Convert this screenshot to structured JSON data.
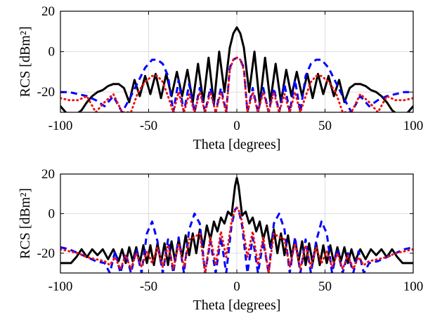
{
  "chart_data": [
    {
      "type": "line",
      "xlabel": "Theta [degrees]",
      "ylabel": "RCS [dBm²]",
      "xlim": [
        -100,
        100
      ],
      "ylim": [
        -30,
        20
      ],
      "xticks": [
        "-100",
        "-50",
        "0",
        "50",
        "100"
      ],
      "yticks": [
        "20",
        "0",
        "-20"
      ],
      "grid": true,
      "series": [
        {
          "color": "#000000",
          "style": "solid",
          "x": [
            -100,
            -97,
            -94,
            -91,
            -88,
            -85,
            -82,
            -79,
            -76,
            -73,
            -70,
            -67,
            -64,
            -61,
            -58,
            -55,
            -52,
            -49,
            -46,
            -43,
            -40,
            -37,
            -34,
            -31,
            -28,
            -25,
            -22,
            -19,
            -16,
            -13,
            -10,
            -7,
            -4,
            -2,
            0,
            2,
            4,
            7,
            10,
            13,
            16,
            19,
            22,
            25,
            28,
            31,
            34,
            37,
            40,
            43,
            46,
            49,
            52,
            55,
            58,
            61,
            64,
            67,
            70,
            73,
            76,
            79,
            82,
            85,
            88,
            91,
            94,
            97,
            100
          ],
          "y": [
            -27,
            -30,
            -32,
            -31,
            -29,
            -25,
            -22,
            -20,
            -19,
            -17,
            -16,
            -16,
            -18,
            -25,
            -14,
            -22,
            -12,
            -21,
            -11,
            -23,
            -11,
            -22,
            -10,
            -22,
            -9,
            -25,
            -6,
            -25,
            -3,
            -26,
            0,
            -20,
            2,
            9,
            12,
            9,
            2,
            -20,
            0,
            -26,
            -3,
            -25,
            -6,
            -25,
            -9,
            -22,
            -10,
            -22,
            -11,
            -23,
            -11,
            -21,
            -12,
            -22,
            -14,
            -25,
            -18,
            -16,
            -16,
            -17,
            -19,
            -20,
            -22,
            -25,
            -29,
            -31,
            -32,
            -30,
            -27
          ]
        },
        {
          "color": "#0000ff",
          "style": "dashed",
          "x": [
            -100,
            -95,
            -90,
            -85,
            -80,
            -75,
            -70,
            -65,
            -60,
            -56,
            -52,
            -48,
            -45,
            -42,
            -39,
            -36,
            -33,
            -30,
            -27,
            -24,
            -21,
            -18,
            -15,
            -12,
            -9,
            -6,
            -4,
            -2,
            0,
            2,
            4,
            6,
            9,
            12,
            15,
            18,
            21,
            24,
            27,
            30,
            33,
            36,
            39,
            42,
            45,
            48,
            52,
            56,
            60,
            65,
            70,
            75,
            80,
            85,
            90,
            95,
            100
          ],
          "y": [
            -20,
            -20,
            -21,
            -22,
            -24,
            -27,
            -22,
            -30,
            -22,
            -15,
            -8,
            -4,
            -4,
            -6,
            -12,
            -30,
            -14,
            -30,
            -16,
            -30,
            -18,
            -30,
            -18,
            -30,
            -18,
            -30,
            -8,
            -4,
            -3,
            -4,
            -8,
            -30,
            -18,
            -30,
            -18,
            -30,
            -18,
            -30,
            -16,
            -30,
            -14,
            -30,
            -12,
            -6,
            -4,
            -4,
            -8,
            -15,
            -22,
            -30,
            -22,
            -27,
            -24,
            -22,
            -21,
            -20,
            -20
          ]
        },
        {
          "color": "#ee1111",
          "style": "dotted",
          "x": [
            -100,
            -95,
            -90,
            -85,
            -80,
            -75,
            -70,
            -65,
            -60,
            -56,
            -52,
            -48,
            -45,
            -42,
            -39,
            -36,
            -33,
            -30,
            -27,
            -24,
            -21,
            -18,
            -15,
            -12,
            -9,
            -6,
            -4,
            -2,
            0,
            2,
            4,
            6,
            9,
            12,
            15,
            18,
            21,
            24,
            27,
            30,
            33,
            36,
            39,
            42,
            45,
            48,
            52,
            56,
            60,
            65,
            70,
            75,
            80,
            85,
            90,
            95,
            100
          ],
          "y": [
            -23,
            -24,
            -24,
            -22,
            -30,
            -25,
            -21,
            -30,
            -30,
            -20,
            -15,
            -12,
            -12,
            -15,
            -22,
            -30,
            -20,
            -30,
            -21,
            -30,
            -20,
            -30,
            -20,
            -30,
            -20,
            -30,
            -9,
            -4,
            -3,
            -4,
            -9,
            -30,
            -20,
            -30,
            -20,
            -30,
            -20,
            -30,
            -21,
            -30,
            -20,
            -30,
            -22,
            -15,
            -12,
            -12,
            -15,
            -20,
            -30,
            -30,
            -21,
            -25,
            -30,
            -22,
            -24,
            -24,
            -23
          ]
        }
      ]
    },
    {
      "type": "line",
      "xlabel": "Theta [degrees]",
      "ylabel": "RCS [dBm²]",
      "xlim": [
        -100,
        100
      ],
      "ylim": [
        -30,
        20
      ],
      "xticks": [
        "-100",
        "-50",
        "0",
        "50",
        "100"
      ],
      "yticks": [
        "20",
        "0",
        "-20"
      ],
      "grid": true,
      "series": [
        {
          "color": "#000000",
          "style": "solid",
          "x": [
            -100,
            -97,
            -94,
            -91,
            -88,
            -85,
            -82,
            -79,
            -76,
            -73,
            -70,
            -67,
            -65,
            -63,
            -61,
            -59,
            -57,
            -55,
            -53,
            -51,
            -49,
            -47,
            -45,
            -43,
            -41,
            -39,
            -37,
            -35,
            -33,
            -31,
            -29,
            -27,
            -25,
            -23,
            -21,
            -19,
            -17,
            -15,
            -13,
            -11,
            -9,
            -7,
            -5,
            -3,
            -1,
            0,
            1,
            3,
            5,
            7,
            9,
            11,
            13,
            15,
            17,
            19,
            21,
            23,
            25,
            27,
            29,
            31,
            33,
            35,
            37,
            39,
            41,
            43,
            45,
            47,
            49,
            51,
            53,
            55,
            57,
            59,
            61,
            63,
            65,
            67,
            70,
            73,
            76,
            79,
            82,
            85,
            88,
            91,
            94,
            97,
            100
          ],
          "y": [
            -25,
            -25,
            -25,
            -22,
            -18,
            -22,
            -18,
            -21,
            -18,
            -23,
            -18,
            -24,
            -18,
            -25,
            -17,
            -24,
            -17,
            -25,
            -16,
            -25,
            -16,
            -26,
            -15,
            -25,
            -15,
            -26,
            -14,
            -24,
            -13,
            -22,
            -11,
            -21,
            -10,
            -20,
            -8,
            -17,
            -6,
            -13,
            -4,
            -9,
            -2,
            -5,
            1,
            -1,
            14,
            18,
            14,
            -1,
            1,
            -5,
            -2,
            -9,
            -4,
            -13,
            -6,
            -17,
            -8,
            -20,
            -10,
            -21,
            -11,
            -22,
            -13,
            -24,
            -14,
            -26,
            -15,
            -25,
            -15,
            -26,
            -16,
            -25,
            -16,
            -25,
            -17,
            -24,
            -17,
            -25,
            -18,
            -24,
            -18,
            -23,
            -18,
            -21,
            -18,
            -22,
            -18,
            -22,
            -25,
            -25,
            -25
          ]
        },
        {
          "color": "#0000ff",
          "style": "dashed",
          "x": [
            -100,
            -95,
            -90,
            -85,
            -80,
            -75,
            -72,
            -69,
            -66,
            -63,
            -60,
            -57,
            -54,
            -51,
            -48,
            -45,
            -42,
            -39,
            -36,
            -33,
            -30,
            -27,
            -24,
            -21,
            -18,
            -15,
            -12,
            -9,
            -6,
            -3,
            -1,
            0,
            1,
            3,
            6,
            9,
            12,
            15,
            18,
            21,
            24,
            27,
            30,
            33,
            36,
            39,
            42,
            45,
            48,
            51,
            54,
            57,
            60,
            63,
            66,
            69,
            72,
            75,
            80,
            85,
            90,
            95,
            100
          ],
          "y": [
            -17,
            -18,
            -20,
            -22,
            -24,
            -25,
            -30,
            -19,
            -30,
            -20,
            -30,
            -18,
            -30,
            -10,
            -4,
            -14,
            -30,
            -13,
            -30,
            -12,
            -30,
            -8,
            0,
            -5,
            -30,
            -14,
            -30,
            -12,
            -30,
            -6,
            2,
            3,
            2,
            -6,
            -30,
            -12,
            -30,
            -14,
            -30,
            -5,
            0,
            -8,
            -30,
            -12,
            -30,
            -13,
            -30,
            -14,
            -4,
            -10,
            -30,
            -18,
            -30,
            -20,
            -30,
            -19,
            -30,
            -25,
            -24,
            -22,
            -20,
            -18,
            -17
          ]
        },
        {
          "color": "#ee1111",
          "style": "dotted",
          "x": [
            -100,
            -95,
            -90,
            -85,
            -80,
            -75,
            -72,
            -69,
            -66,
            -63,
            -60,
            -57,
            -54,
            -51,
            -48,
            -45,
            -42,
            -39,
            -36,
            -33,
            -30,
            -27,
            -24,
            -21,
            -18,
            -15,
            -12,
            -9,
            -6,
            -3,
            -1,
            0,
            1,
            3,
            6,
            9,
            12,
            15,
            18,
            21,
            24,
            27,
            30,
            33,
            36,
            39,
            42,
            45,
            48,
            51,
            54,
            57,
            60,
            63,
            66,
            69,
            72,
            75,
            80,
            85,
            90,
            95,
            100
          ],
          "y": [
            -18,
            -19,
            -20,
            -22,
            -23,
            -24,
            -26,
            -22,
            -28,
            -21,
            -28,
            -20,
            -27,
            -19,
            -25,
            -17,
            -27,
            -16,
            -28,
            -15,
            -27,
            -13,
            -12,
            -10,
            -30,
            -12,
            -26,
            -9,
            -22,
            -4,
            2,
            3,
            2,
            -4,
            -22,
            -9,
            -26,
            -12,
            -30,
            -10,
            -12,
            -13,
            -27,
            -15,
            -28,
            -16,
            -27,
            -17,
            -25,
            -19,
            -27,
            -20,
            -28,
            -21,
            -28,
            -22,
            -26,
            -24,
            -23,
            -22,
            -20,
            -19,
            -18
          ]
        }
      ]
    }
  ]
}
